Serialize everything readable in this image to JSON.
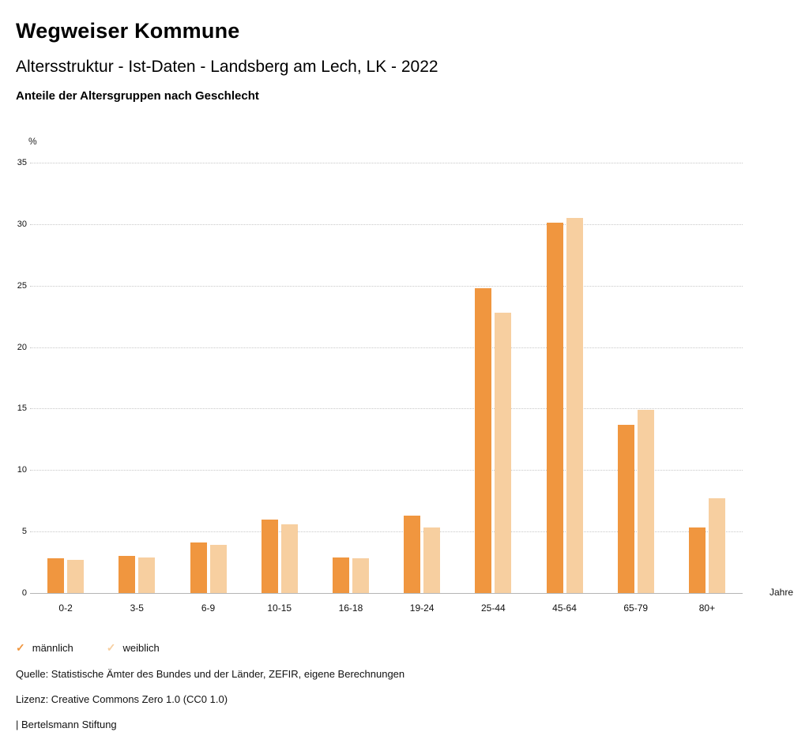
{
  "header": {
    "title": "Wegweiser Kommune",
    "subtitle": "Altersstruktur - Ist-Daten - Landsberg am Lech, LK - 2022",
    "chart_heading": "Anteile der Altersgruppen nach Geschlecht"
  },
  "chart_data": {
    "type": "bar",
    "title": "Anteile der Altersgruppen nach Geschlecht",
    "unit_label": "%",
    "x_axis_label": "Jahre",
    "categories": [
      "0-2",
      "3-5",
      "6-9",
      "10-15",
      "16-18",
      "19-24",
      "25-44",
      "45-64",
      "65-79",
      "80+"
    ],
    "series": [
      {
        "name": "männlich",
        "color": "#F0963F",
        "values": [
          2.8,
          3.0,
          4.1,
          6.0,
          2.9,
          6.3,
          24.8,
          30.1,
          13.7,
          5.3
        ]
      },
      {
        "name": "weiblich",
        "color": "#F7CFA0",
        "values": [
          2.7,
          2.9,
          3.9,
          5.6,
          2.8,
          5.3,
          22.8,
          30.5,
          14.9,
          7.7
        ]
      }
    ],
    "ylim": [
      0,
      35
    ],
    "y_ticks": [
      0,
      5,
      10,
      15,
      20,
      25,
      30,
      35
    ],
    "grid": true,
    "legend_position": "bottom"
  },
  "legend": {
    "items": [
      {
        "label": "männlich",
        "color": "#F0963F",
        "icon": "check"
      },
      {
        "label": "weiblich",
        "color": "#F7CFA0",
        "icon": "check"
      }
    ]
  },
  "footer": {
    "source": "Quelle: Statistische Ämter des Bundes und der Länder, ZEFIR, eigene Berechnungen",
    "license": "Lizenz: Creative Commons Zero 1.0 (CC0 1.0)",
    "attribution": "| Bertelsmann Stiftung"
  }
}
